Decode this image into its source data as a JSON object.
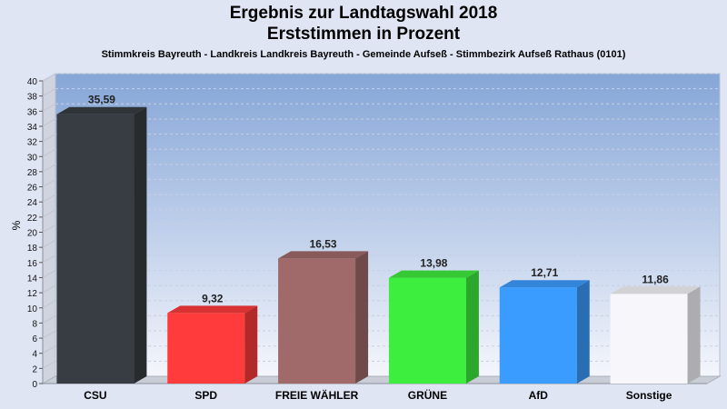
{
  "chart_data": {
    "type": "bar",
    "title": "Ergebnis zur Landtagswahl 2018",
    "subtitle": "Erststimmen in Prozent",
    "caption": "Stimmkreis Bayreuth - Landkreis Landkreis Bayreuth - Gemeinde Aufseß - Stimmbezirk Aufseß Rathaus (0101)",
    "ylabel": "%",
    "xlabel": "",
    "ylim": [
      0,
      40
    ],
    "ytick_step": 2,
    "grid": true,
    "categories": [
      "CSU",
      "SPD",
      "FREIE WÄHLER",
      "GRÜNE",
      "AfD",
      "Sonstige"
    ],
    "values": [
      35.59,
      9.32,
      16.53,
      13.98,
      12.71,
      11.86
    ],
    "value_labels": [
      "35,59",
      "9,32",
      "16,53",
      "13,98",
      "12,71",
      "11,86"
    ],
    "colors": [
      "#373d42",
      "#ff3b3b",
      "#a06a6a",
      "#3eee3e",
      "#3b9cff",
      "#f7f7fb"
    ]
  }
}
